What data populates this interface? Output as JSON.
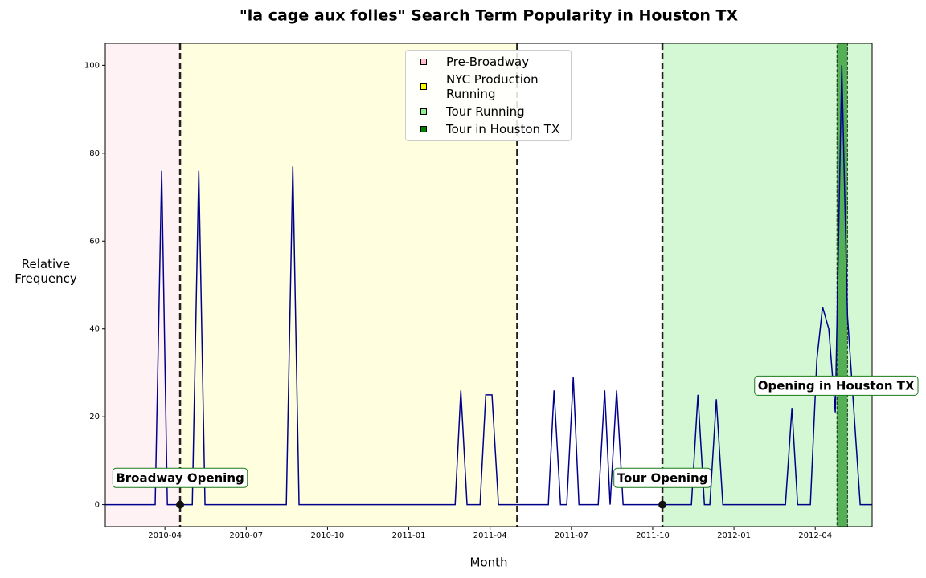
{
  "chart_data": {
    "type": "line",
    "title": "\"la cage aux folles\" Search Term Popularity in Houston TX",
    "x_label": "Month",
    "y_label": "Relative Frequency",
    "color": "#00008b",
    "x": [
      0.8,
      2.64,
      2.88,
      3.09,
      4.01,
      4.25,
      4.48,
      7.48,
      7.72,
      7.95,
      13.71,
      13.92,
      14.15,
      14.63,
      14.84,
      15.07,
      15.31,
      17.15,
      17.36,
      17.6,
      17.83,
      18.07,
      18.28,
      18.99,
      19.23,
      19.43,
      19.67,
      19.91,
      22.43,
      22.67,
      22.91,
      23.11,
      23.35,
      23.59,
      25.9,
      26.14,
      26.35,
      26.82,
      27.06,
      27.27,
      27.5,
      27.74,
      27.98,
      28.19,
      28.66,
      29.1
    ],
    "values": [
      0,
      0,
      76,
      0,
      0,
      76,
      0,
      0,
      77,
      0,
      0,
      26,
      0,
      0,
      25,
      25,
      0,
      0,
      26,
      0,
      0,
      29,
      0,
      0,
      26,
      0,
      26,
      0,
      0,
      25,
      0,
      0,
      24,
      0,
      0,
      22,
      0,
      0,
      33,
      45,
      40,
      21,
      100,
      43,
      0,
      0
    ],
    "xlim": [
      0.8,
      29.1
    ],
    "ylim": [
      -5,
      105
    ],
    "xticks": [
      {
        "value": 3,
        "label": "2010-04"
      },
      {
        "value": 6,
        "label": "2010-07"
      },
      {
        "value": 9,
        "label": "2010-10"
      },
      {
        "value": 12,
        "label": "2011-01"
      },
      {
        "value": 15,
        "label": "2011-04"
      },
      {
        "value": 18,
        "label": "2011-07"
      },
      {
        "value": 21,
        "label": "2011-10"
      },
      {
        "value": 24,
        "label": "2012-01"
      },
      {
        "value": 27,
        "label": "2012-04"
      }
    ],
    "yticks": [
      0,
      20,
      40,
      60,
      80,
      100
    ],
    "spans": [
      {
        "name": "Pre-Broadway",
        "start": 0.8,
        "end": 3.56,
        "color": "#ffc0cb",
        "alpha": 0.2
      },
      {
        "name": "NYC Production Running",
        "start": 3.56,
        "end": 16.0,
        "color": "#ffff00",
        "alpha": 0.12
      },
      {
        "name": "Tour Running",
        "start": 21.36,
        "end": 29.1,
        "color": "#90ee90",
        "alpha": 0.4
      },
      {
        "name": "Tour in Houston TX",
        "start": 27.8,
        "end": 28.19,
        "color": "#008000",
        "alpha": 0.6
      }
    ],
    "vlines": [
      3.56,
      16.0,
      21.36
    ],
    "annotations": [
      {
        "text": "Broadway Opening",
        "x": 3.56,
        "y": 6,
        "point": [
          3.56,
          0
        ]
      },
      {
        "text": "Tour Opening",
        "x": 21.36,
        "y": 6,
        "point": [
          21.36,
          0
        ]
      },
      {
        "text": "Opening in Houston TX",
        "x": 27.77,
        "y": 27
      }
    ]
  }
}
